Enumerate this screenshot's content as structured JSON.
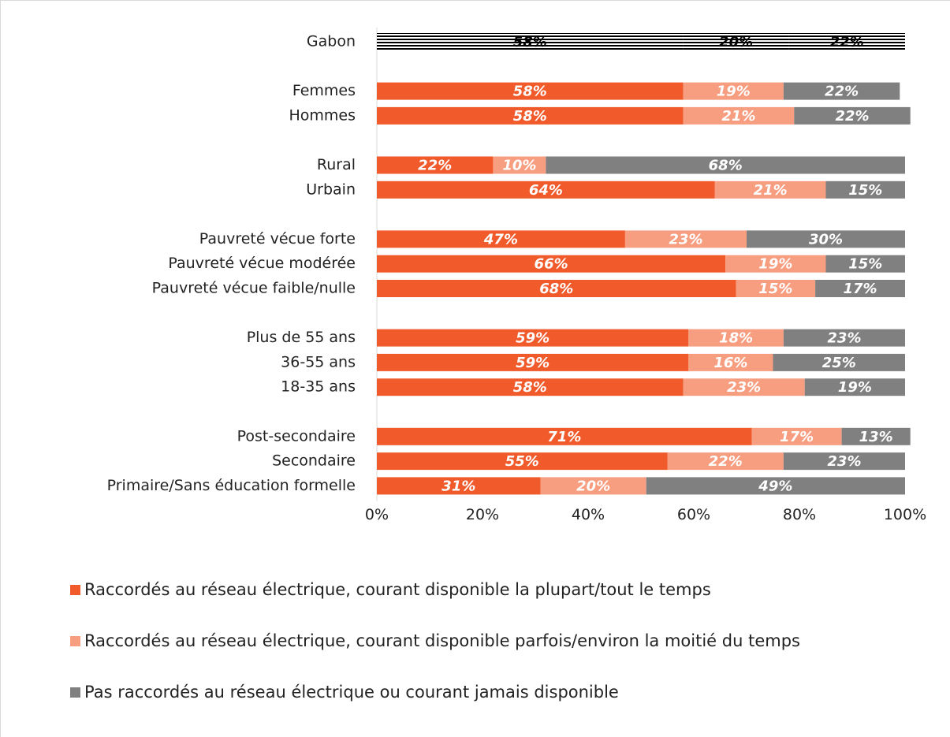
{
  "chart_data": {
    "type": "stacked_barh",
    "categories": [
      "Gabon",
      null,
      "Femmes",
      "Hommes",
      null,
      "Rural",
      "Urbain",
      null,
      "Pauvreté vécue forte",
      "Pauvreté vécue modérée",
      "Pauvreté vécue faible/nulle",
      null,
      "Plus de 55 ans",
      "36-55 ans",
      "18-35 ans",
      null,
      "Post-secondaire",
      "Secondaire",
      "Primaire/Sans éducation formelle"
    ],
    "series": [
      {
        "name": "Raccordés au réseau électrique, courant disponible la plupart/tout le temps",
        "color": "#f15a2b",
        "values": [
          58,
          null,
          58,
          58,
          null,
          22,
          64,
          null,
          47,
          66,
          68,
          null,
          59,
          59,
          58,
          null,
          71,
          55,
          31
        ],
        "value_labels": [
          "58%",
          null,
          "58%",
          "58%",
          null,
          "22%",
          "64%",
          null,
          "47%",
          "66%",
          "68%",
          null,
          "59%",
          "59%",
          "58%",
          null,
          "71%",
          "55%",
          "31%"
        ]
      },
      {
        "name": "Raccordés au réseau électrique, courant disponible parfois/environ la moitié du temps",
        "color": "#f79d80",
        "values": [
          20,
          null,
          19,
          21,
          null,
          10,
          21,
          null,
          23,
          19,
          15,
          null,
          18,
          16,
          23,
          null,
          17,
          22,
          20
        ],
        "value_labels": [
          "20%",
          null,
          "19%",
          "21%",
          null,
          "10%",
          "21%",
          null,
          "23%",
          "19%",
          "15%",
          null,
          "18%",
          "16%",
          "23%",
          null,
          "17%",
          "22%",
          "20%"
        ]
      },
      {
        "name": "Pas raccordés au réseau électrique ou courant jamais disponible",
        "color": "#808080",
        "values": [
          22,
          null,
          22,
          22,
          null,
          68,
          15,
          null,
          30,
          15,
          17,
          null,
          23,
          25,
          19,
          null,
          13,
          23,
          49
        ],
        "value_labels": [
          "22%",
          null,
          "22%",
          "22%",
          null,
          "68%",
          "15%",
          null,
          "30%",
          "15%",
          "17%",
          null,
          "23%",
          "25%",
          "19%",
          null,
          "13%",
          "23%",
          "49%"
        ]
      }
    ],
    "xlim": [
      0,
      100
    ],
    "xticks": [
      {
        "value": 0,
        "label": "0%"
      },
      {
        "value": 20,
        "label": "20%"
      },
      {
        "value": 40,
        "label": "40%"
      },
      {
        "value": 60,
        "label": "60%"
      },
      {
        "value": 80,
        "label": "80%"
      },
      {
        "value": 100,
        "label": "100%"
      }
    ],
    "hatched_rows": [
      0
    ],
    "legend": "bottom"
  }
}
